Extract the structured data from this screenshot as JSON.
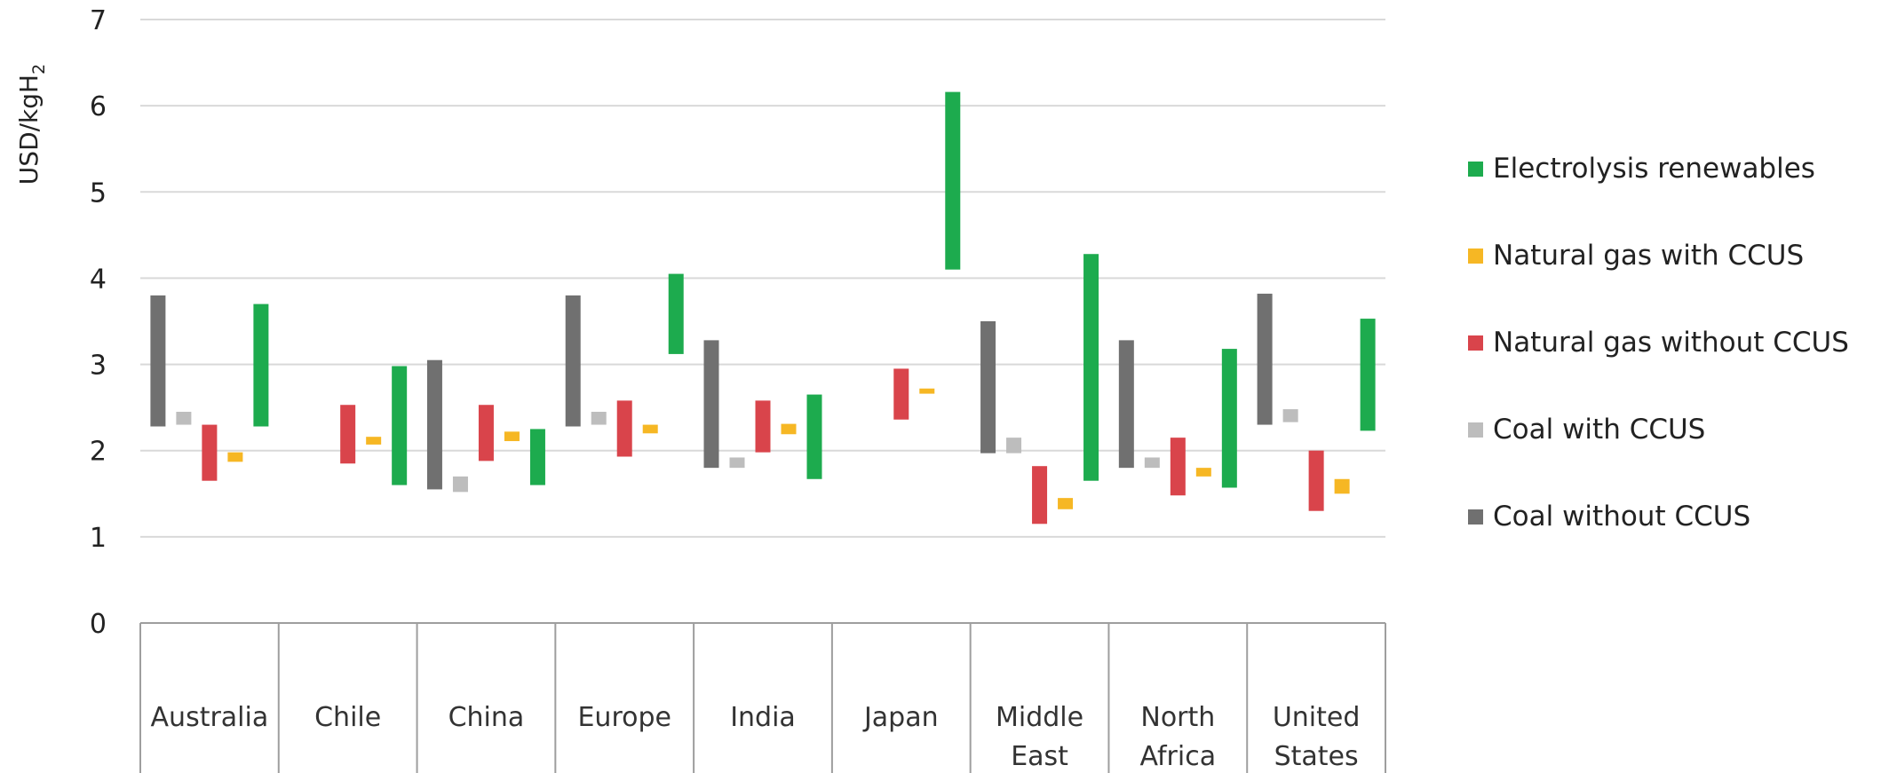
{
  "chart_data": {
    "type": "bar",
    "subtype": "floating-range",
    "ylabel": "USD/kgH",
    "ylabel_subscript": "2",
    "ylim": [
      0,
      7
    ],
    "yticks": [
      "0",
      "1",
      "2",
      "3",
      "4",
      "5",
      "6",
      "7"
    ],
    "grid": true,
    "legend_position": "right",
    "categories": [
      [
        "Australia"
      ],
      [
        "Chile"
      ],
      [
        "China"
      ],
      [
        "Europe"
      ],
      [
        "India"
      ],
      [
        "Japan"
      ],
      [
        "Middle",
        "East"
      ],
      [
        "North",
        "Africa"
      ],
      [
        "United",
        "States"
      ]
    ],
    "series": [
      {
        "name": "Coal without CCUS",
        "color": "#707070",
        "ranges": [
          [
            2.28,
            3.8
          ],
          null,
          [
            1.55,
            3.05
          ],
          [
            2.28,
            3.8
          ],
          [
            1.8,
            3.28
          ],
          null,
          [
            1.97,
            3.5
          ],
          [
            1.8,
            3.28
          ],
          [
            2.3,
            3.82
          ]
        ]
      },
      {
        "name": "Coal with CCUS",
        "color": "#bdbdbd",
        "ranges": [
          [
            2.3,
            2.45
          ],
          null,
          [
            1.52,
            1.7
          ],
          [
            2.3,
            2.45
          ],
          [
            1.8,
            1.92
          ],
          null,
          [
            1.97,
            2.15
          ],
          [
            1.8,
            1.92
          ],
          [
            2.33,
            2.48
          ]
        ]
      },
      {
        "name": "Natural gas without CCUS",
        "color": "#d9444b",
        "ranges": [
          [
            1.65,
            2.3
          ],
          [
            1.85,
            2.53
          ],
          [
            1.88,
            2.53
          ],
          [
            1.93,
            2.58
          ],
          [
            1.98,
            2.58
          ],
          [
            2.36,
            2.95
          ],
          [
            1.15,
            1.82
          ],
          [
            1.48,
            2.15
          ],
          [
            1.3,
            2.0
          ]
        ]
      },
      {
        "name": "Natural gas with CCUS",
        "color": "#f6b724",
        "ranges": [
          [
            1.87,
            1.98
          ],
          [
            2.07,
            2.16
          ],
          [
            2.11,
            2.22
          ],
          [
            2.2,
            2.3
          ],
          [
            2.19,
            2.31
          ],
          [
            2.66,
            2.72
          ],
          [
            1.32,
            1.45
          ],
          [
            1.7,
            1.8
          ],
          [
            1.5,
            1.67
          ]
        ]
      },
      {
        "name": "Electrolysis renewables",
        "color": "#1dab4e",
        "ranges": [
          [
            2.28,
            3.7
          ],
          [
            1.6,
            2.98
          ],
          [
            1.6,
            2.25
          ],
          [
            3.12,
            4.05
          ],
          [
            1.67,
            2.65
          ],
          [
            4.1,
            6.16
          ],
          [
            1.65,
            4.28
          ],
          [
            1.57,
            3.18
          ],
          [
            2.23,
            3.53
          ]
        ]
      }
    ],
    "legend_order": [
      "Electrolysis renewables",
      "Natural gas with CCUS",
      "Natural gas without CCUS",
      "Coal with CCUS",
      "Coal without CCUS"
    ]
  }
}
